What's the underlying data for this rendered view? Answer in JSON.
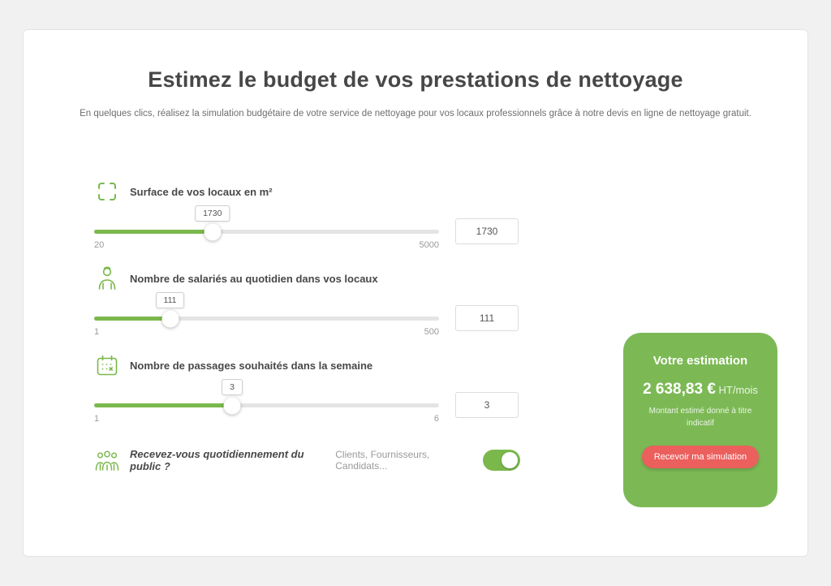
{
  "page": {
    "title": "Estimez le budget de vos prestations de nettoyage",
    "subtitle": "En quelques clics, réalisez la simulation budgétaire de votre service de nettoyage pour vos locaux professionnels grâce à notre devis en ligne de nettoyage gratuit."
  },
  "sliders": [
    {
      "icon": "crop-frame-icon",
      "label": "Surface de vos locaux en m²",
      "value": "1730",
      "min": "20",
      "max": "5000",
      "percent": 34.3
    },
    {
      "icon": "worker-icon",
      "label": "Nombre de salariés au quotidien dans vos locaux",
      "value": "111",
      "min": "1",
      "max": "500",
      "percent": 22
    },
    {
      "icon": "calendar-icon",
      "label": "Nombre de passages souhaités dans la semaine",
      "value": "3",
      "min": "1",
      "max": "6",
      "percent": 40
    }
  ],
  "toggle": {
    "label": "Recevez-vous quotidiennement du public ?",
    "hint": "Clients, Fournisseurs, Candidats...",
    "on": true
  },
  "estimation": {
    "title": "Votre estimation",
    "amount": "2 638,83 €",
    "unit": "HT/mois",
    "note": "Montant estimé donné à titre indicatif",
    "button_label": "Recevoir ma simulation"
  },
  "colors": {
    "accent_green": "#7ab84c",
    "card_green": "#7cb955",
    "button_red": "#eb5f5d"
  }
}
